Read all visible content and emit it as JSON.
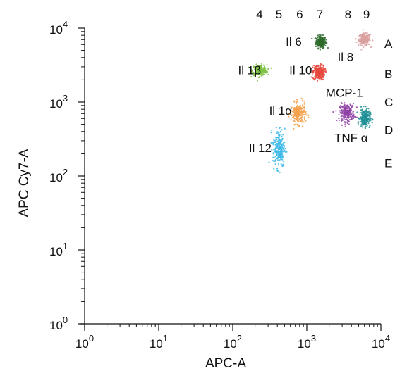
{
  "chart_data": {
    "type": "scatter",
    "xlabel": "APC-A",
    "ylabel": "APC Cy7-A",
    "x_scale": "log",
    "y_scale": "log",
    "xlim": [
      1,
      10000
    ],
    "ylim": [
      1,
      10000
    ],
    "grid": false,
    "x_ticks": [
      {
        "value": 1,
        "base": "10",
        "exp": "0"
      },
      {
        "value": 10,
        "base": "10",
        "exp": "1"
      },
      {
        "value": 100,
        "base": "10",
        "exp": "2"
      },
      {
        "value": 1000,
        "base": "10",
        "exp": "3"
      },
      {
        "value": 10000,
        "base": "10",
        "exp": "4"
      }
    ],
    "y_ticks": [
      {
        "value": 1,
        "base": "10",
        "exp": "0"
      },
      {
        "value": 10,
        "base": "10",
        "exp": "1"
      },
      {
        "value": 100,
        "base": "10",
        "exp": "2"
      },
      {
        "value": 1000,
        "base": "10",
        "exp": "3"
      },
      {
        "value": 10000,
        "base": "10",
        "exp": "4"
      }
    ],
    "top_labels": [
      {
        "text": "4",
        "x": 230
      },
      {
        "text": "5",
        "x": 420
      },
      {
        "text": "6",
        "x": 800
      },
      {
        "text": "7",
        "x": 1500
      },
      {
        "text": "8",
        "x": 3600
      },
      {
        "text": "9",
        "x": 6400
      }
    ],
    "right_labels": [
      {
        "text": "A",
        "y": 6200
      },
      {
        "text": "B",
        "y": 2400
      },
      {
        "text": "C",
        "y": 1000
      },
      {
        "text": "D",
        "y": 420
      },
      {
        "text": "E",
        "y": 150
      }
    ],
    "series": [
      {
        "name": "Il 6",
        "color": "#2e6b2a",
        "x": 1550,
        "y": 6500,
        "xspread": 0.035,
        "yspread": 0.04,
        "label_x": 520,
        "label_y": 6600
      },
      {
        "name": "Il 8",
        "color": "#d9a0a0",
        "x": 6000,
        "y": 7000,
        "xspread": 0.04,
        "yspread": 0.04,
        "label_x": 2600,
        "label_y": 4100
      },
      {
        "name": "Il 1β",
        "color": "#7cc242",
        "x": 230,
        "y": 2700,
        "xspread": 0.05,
        "yspread": 0.035,
        "label_x": 118,
        "label_y": 2700
      },
      {
        "name": "Il 10",
        "color": "#e8453c",
        "x": 1450,
        "y": 2500,
        "xspread": 0.04,
        "yspread": 0.05,
        "label_x": 580,
        "label_y": 2700
      },
      {
        "name": "MCP-1",
        "color": "#8e3fa3",
        "x": 3500,
        "y": 720,
        "xspread": 0.05,
        "yspread": 0.06,
        "label_x": 1800,
        "label_y": 1350
      },
      {
        "name": "Il 1α",
        "color": "#f4a04a",
        "x": 770,
        "y": 700,
        "xspread": 0.05,
        "yspread": 0.07,
        "label_x": 310,
        "label_y": 770
      },
      {
        "name": "TNF α",
        "color": "#1f8f95",
        "x": 6100,
        "y": 610,
        "xspread": 0.035,
        "yspread": 0.06,
        "label_x": 2350,
        "label_y": 330
      },
      {
        "name": "Il 12",
        "color": "#3bb8e8",
        "x": 420,
        "y": 240,
        "xspread": 0.04,
        "yspread": 0.13,
        "label_x": 165,
        "label_y": 240
      }
    ]
  }
}
